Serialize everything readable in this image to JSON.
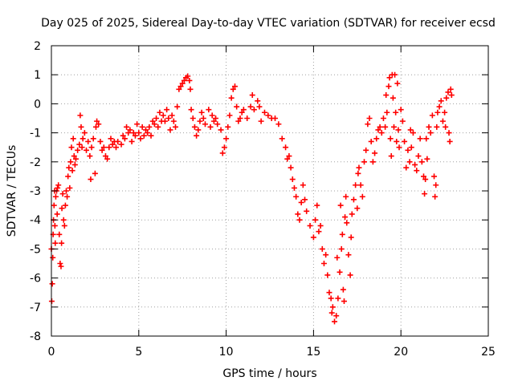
{
  "chart_data": {
    "type": "scatter",
    "title": "Day 025 of 2025, Sidereal Day-to-day VTEC variation (SDTVAR) for receiver ecsd",
    "xlabel": "GPS time / hours",
    "ylabel": "SDTVAR / TECUs",
    "xlim": [
      0,
      25
    ],
    "ylim": [
      -8,
      2
    ],
    "xticks": [
      0,
      5,
      10,
      15,
      20,
      25
    ],
    "yticks": [
      -8,
      -7,
      -6,
      -5,
      -4,
      -3,
      -2,
      -1,
      0,
      1,
      2
    ],
    "grid": true,
    "marker": "plus",
    "marker_color": "#ff0000",
    "series": [
      {
        "points": [
          [
            0.0,
            -5.0
          ],
          [
            0.02,
            -6.8
          ],
          [
            0.05,
            -6.2
          ],
          [
            0.08,
            -5.3
          ],
          [
            0.1,
            -4.5
          ],
          [
            0.12,
            -4.0
          ],
          [
            0.15,
            -3.5
          ],
          [
            0.18,
            -3.0
          ],
          [
            0.2,
            -4.2
          ],
          [
            0.22,
            -4.8
          ],
          [
            0.25,
            -3.2
          ],
          [
            0.3,
            -3.0
          ],
          [
            0.33,
            -3.8
          ],
          [
            0.35,
            -2.9
          ],
          [
            0.4,
            -2.8
          ],
          [
            0.45,
            -4.5
          ],
          [
            0.5,
            -5.5
          ],
          [
            0.55,
            -5.6
          ],
          [
            0.58,
            -4.8
          ],
          [
            0.6,
            -3.6
          ],
          [
            0.65,
            -3.1
          ],
          [
            0.7,
            -4.0
          ],
          [
            0.75,
            -4.2
          ],
          [
            0.8,
            -3.5
          ],
          [
            0.85,
            -3.0
          ],
          [
            0.9,
            -3.2
          ],
          [
            0.95,
            -2.5
          ],
          [
            1.0,
            -2.2
          ],
          [
            1.05,
            -2.9
          ],
          [
            1.1,
            -2.0
          ],
          [
            1.15,
            -1.5
          ],
          [
            1.2,
            -2.3
          ],
          [
            1.25,
            -1.2
          ],
          [
            1.3,
            -1.8
          ],
          [
            1.35,
            -2.1
          ],
          [
            1.4,
            -1.9
          ],
          [
            1.5,
            -1.6
          ],
          [
            1.6,
            -1.4
          ],
          [
            1.65,
            -0.4
          ],
          [
            1.7,
            -0.8
          ],
          [
            1.75,
            -1.5
          ],
          [
            1.8,
            -1.2
          ],
          [
            1.9,
            -1.0
          ],
          [
            2.0,
            -1.6
          ],
          [
            2.1,
            -1.3
          ],
          [
            2.2,
            -1.8
          ],
          [
            2.25,
            -2.6
          ],
          [
            2.3,
            -1.5
          ],
          [
            2.4,
            -1.2
          ],
          [
            2.5,
            -2.4
          ],
          [
            2.55,
            -0.8
          ],
          [
            2.6,
            -0.6
          ],
          [
            2.7,
            -0.7
          ],
          [
            2.8,
            -1.3
          ],
          [
            2.9,
            -1.6
          ],
          [
            3.0,
            -1.5
          ],
          [
            3.1,
            -1.8
          ],
          [
            3.2,
            -1.9
          ],
          [
            3.3,
            -1.5
          ],
          [
            3.4,
            -1.2
          ],
          [
            3.5,
            -1.4
          ],
          [
            3.6,
            -1.3
          ],
          [
            3.7,
            -1.5
          ],
          [
            3.8,
            -1.3
          ],
          [
            4.0,
            -1.4
          ],
          [
            4.1,
            -1.1
          ],
          [
            4.2,
            -1.2
          ],
          [
            4.3,
            -0.8
          ],
          [
            4.4,
            -1.0
          ],
          [
            4.5,
            -0.9
          ],
          [
            4.6,
            -1.3
          ],
          [
            4.7,
            -1.0
          ],
          [
            4.8,
            -1.1
          ],
          [
            4.9,
            -0.7
          ],
          [
            5.0,
            -1.0
          ],
          [
            5.1,
            -1.2
          ],
          [
            5.2,
            -0.8
          ],
          [
            5.3,
            -1.1
          ],
          [
            5.4,
            -0.9
          ],
          [
            5.5,
            -1.0
          ],
          [
            5.6,
            -0.8
          ],
          [
            5.7,
            -1.1
          ],
          [
            5.8,
            -0.6
          ],
          [
            5.9,
            -0.7
          ],
          [
            6.0,
            -0.5
          ],
          [
            6.1,
            -0.8
          ],
          [
            6.2,
            -0.3
          ],
          [
            6.3,
            -0.6
          ],
          [
            6.4,
            -0.4
          ],
          [
            6.5,
            -0.6
          ],
          [
            6.6,
            -0.2
          ],
          [
            6.7,
            -0.5
          ],
          [
            6.8,
            -0.9
          ],
          [
            6.9,
            -0.4
          ],
          [
            7.0,
            -0.6
          ],
          [
            7.1,
            -0.8
          ],
          [
            7.2,
            -0.1
          ],
          [
            7.3,
            0.5
          ],
          [
            7.4,
            0.6
          ],
          [
            7.5,
            0.7
          ],
          [
            7.6,
            0.8
          ],
          [
            7.7,
            0.9
          ],
          [
            7.8,
            0.95
          ],
          [
            7.9,
            0.8
          ],
          [
            7.95,
            0.5
          ],
          [
            8.0,
            -0.2
          ],
          [
            8.1,
            -0.5
          ],
          [
            8.2,
            -0.8
          ],
          [
            8.3,
            -1.1
          ],
          [
            8.4,
            -0.9
          ],
          [
            8.5,
            -0.6
          ],
          [
            8.6,
            -0.3
          ],
          [
            8.7,
            -0.5
          ],
          [
            8.8,
            -0.7
          ],
          [
            9.0,
            -0.2
          ],
          [
            9.1,
            -0.8
          ],
          [
            9.2,
            -0.4
          ],
          [
            9.3,
            -0.6
          ],
          [
            9.4,
            -0.5
          ],
          [
            9.5,
            -0.7
          ],
          [
            9.7,
            -0.9
          ],
          [
            9.8,
            -1.7
          ],
          [
            9.9,
            -1.5
          ],
          [
            10.0,
            -1.2
          ],
          [
            10.1,
            -0.8
          ],
          [
            10.2,
            -0.4
          ],
          [
            10.3,
            0.2
          ],
          [
            10.4,
            0.5
          ],
          [
            10.5,
            0.6
          ],
          [
            10.6,
            -0.1
          ],
          [
            10.7,
            -0.6
          ],
          [
            10.8,
            -0.5
          ],
          [
            10.9,
            -0.3
          ],
          [
            11.0,
            -0.2
          ],
          [
            11.2,
            -0.5
          ],
          [
            11.4,
            -0.1
          ],
          [
            11.5,
            0.3
          ],
          [
            11.6,
            -0.2
          ],
          [
            11.8,
            0.1
          ],
          [
            11.9,
            -0.1
          ],
          [
            12.0,
            -0.6
          ],
          [
            12.2,
            -0.3
          ],
          [
            12.4,
            -0.4
          ],
          [
            12.6,
            -0.5
          ],
          [
            12.8,
            -0.5
          ],
          [
            13.0,
            -0.7
          ],
          [
            13.2,
            -1.2
          ],
          [
            13.4,
            -1.5
          ],
          [
            13.5,
            -1.9
          ],
          [
            13.6,
            -1.8
          ],
          [
            13.7,
            -2.2
          ],
          [
            13.8,
            -2.6
          ],
          [
            13.9,
            -2.9
          ],
          [
            14.0,
            -3.2
          ],
          [
            14.1,
            -3.8
          ],
          [
            14.2,
            -4.0
          ],
          [
            14.3,
            -3.4
          ],
          [
            14.4,
            -2.8
          ],
          [
            14.5,
            -3.3
          ],
          [
            14.6,
            -3.7
          ],
          [
            14.8,
            -4.2
          ],
          [
            15.0,
            -4.6
          ],
          [
            15.1,
            -4.0
          ],
          [
            15.2,
            -3.5
          ],
          [
            15.3,
            -4.4
          ],
          [
            15.4,
            -4.2
          ],
          [
            15.5,
            -5.0
          ],
          [
            15.6,
            -5.5
          ],
          [
            15.7,
            -5.2
          ],
          [
            15.8,
            -5.9
          ],
          [
            15.9,
            -6.5
          ],
          [
            16.0,
            -6.7
          ],
          [
            16.05,
            -7.2
          ],
          [
            16.1,
            -7.0
          ],
          [
            16.2,
            -7.5
          ],
          [
            16.3,
            -7.3
          ],
          [
            16.35,
            -5.3
          ],
          [
            16.4,
            -6.7
          ],
          [
            16.5,
            -5.8
          ],
          [
            16.55,
            -3.5
          ],
          [
            16.6,
            -5.0
          ],
          [
            16.65,
            -4.5
          ],
          [
            16.7,
            -6.4
          ],
          [
            16.75,
            -6.8
          ],
          [
            16.8,
            -3.9
          ],
          [
            16.85,
            -3.2
          ],
          [
            16.9,
            -4.1
          ],
          [
            17.0,
            -5.2
          ],
          [
            17.1,
            -5.9
          ],
          [
            17.15,
            -4.6
          ],
          [
            17.2,
            -3.8
          ],
          [
            17.3,
            -3.3
          ],
          [
            17.4,
            -2.8
          ],
          [
            17.5,
            -3.6
          ],
          [
            17.55,
            -2.4
          ],
          [
            17.6,
            -2.2
          ],
          [
            17.7,
            -2.8
          ],
          [
            17.8,
            -3.2
          ],
          [
            17.9,
            -2.0
          ],
          [
            18.0,
            -1.6
          ],
          [
            18.1,
            -0.7
          ],
          [
            18.2,
            -0.5
          ],
          [
            18.3,
            -1.3
          ],
          [
            18.4,
            -2.0
          ],
          [
            18.5,
            -1.7
          ],
          [
            18.6,
            -1.2
          ],
          [
            18.7,
            -0.9
          ],
          [
            18.8,
            -0.8
          ],
          [
            18.9,
            -1.0
          ],
          [
            19.0,
            -0.5
          ],
          [
            19.1,
            -0.8
          ],
          [
            19.15,
            0.3
          ],
          [
            19.2,
            -0.3
          ],
          [
            19.3,
            0.6
          ],
          [
            19.35,
            0.9
          ],
          [
            19.4,
            -1.2
          ],
          [
            19.45,
            -1.8
          ],
          [
            19.5,
            1.0
          ],
          [
            19.55,
            0.2
          ],
          [
            19.6,
            -0.8
          ],
          [
            19.65,
            1.0
          ],
          [
            19.7,
            -0.3
          ],
          [
            19.75,
            -1.3
          ],
          [
            19.8,
            0.7
          ],
          [
            19.85,
            -0.9
          ],
          [
            19.9,
            -1.5
          ],
          [
            20.0,
            -0.2
          ],
          [
            20.1,
            -0.6
          ],
          [
            20.2,
            -1.3
          ],
          [
            20.3,
            -2.2
          ],
          [
            20.4,
            -1.6
          ],
          [
            20.5,
            -2.0
          ],
          [
            20.55,
            -0.9
          ],
          [
            20.6,
            -1.5
          ],
          [
            20.7,
            -1.0
          ],
          [
            20.8,
            -2.1
          ],
          [
            20.9,
            -2.3
          ],
          [
            21.0,
            -1.8
          ],
          [
            21.1,
            -1.2
          ],
          [
            21.2,
            -2.0
          ],
          [
            21.3,
            -2.5
          ],
          [
            21.35,
            -3.1
          ],
          [
            21.4,
            -2.6
          ],
          [
            21.45,
            -1.2
          ],
          [
            21.5,
            -1.9
          ],
          [
            21.6,
            -0.8
          ],
          [
            21.7,
            -1.0
          ],
          [
            21.8,
            -0.4
          ],
          [
            21.9,
            -2.5
          ],
          [
            21.95,
            -3.2
          ],
          [
            22.0,
            -2.8
          ],
          [
            22.05,
            -0.8
          ],
          [
            22.1,
            -0.3
          ],
          [
            22.2,
            -0.1
          ],
          [
            22.3,
            0.1
          ],
          [
            22.4,
            -0.6
          ],
          [
            22.5,
            -0.3
          ],
          [
            22.55,
            -0.8
          ],
          [
            22.6,
            0.2
          ],
          [
            22.7,
            0.4
          ],
          [
            22.75,
            -1.0
          ],
          [
            22.8,
            -1.3
          ],
          [
            22.85,
            0.5
          ],
          [
            22.9,
            0.3
          ]
        ]
      }
    ]
  }
}
